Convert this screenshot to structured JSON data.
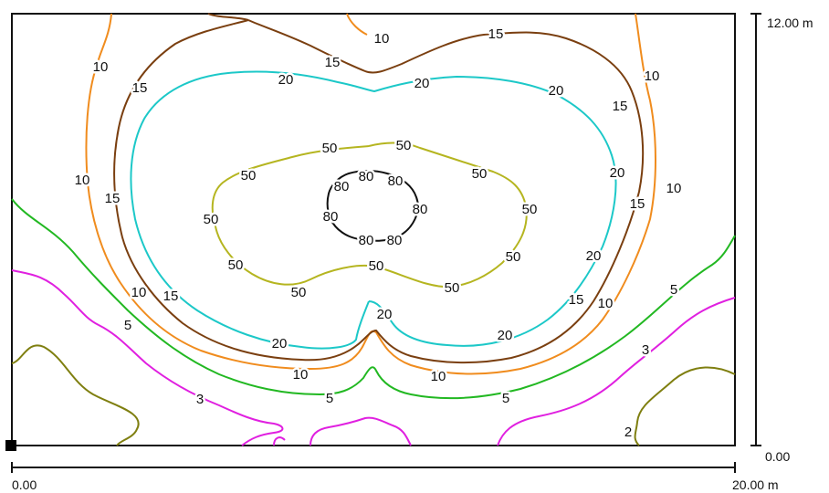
{
  "axes": {
    "x_start_label": "0.00",
    "x_end_label": "20.00 m",
    "y_top_label": "12.00 m",
    "y_bottom_label": "0.00"
  },
  "colors": {
    "c80": "#111111",
    "c50": "#b5b520",
    "c20": "#1cc8c8",
    "c15": "#7a3f10",
    "c10": "#f08c1e",
    "c5": "#22b822",
    "c3": "#e020e0",
    "c2": "#7f7f10"
  },
  "labels": {
    "c80": "80",
    "c50": "50",
    "c20": "20",
    "c15": "15",
    "c10": "10",
    "c5": "5",
    "c3": "3",
    "c2": "2"
  }
}
